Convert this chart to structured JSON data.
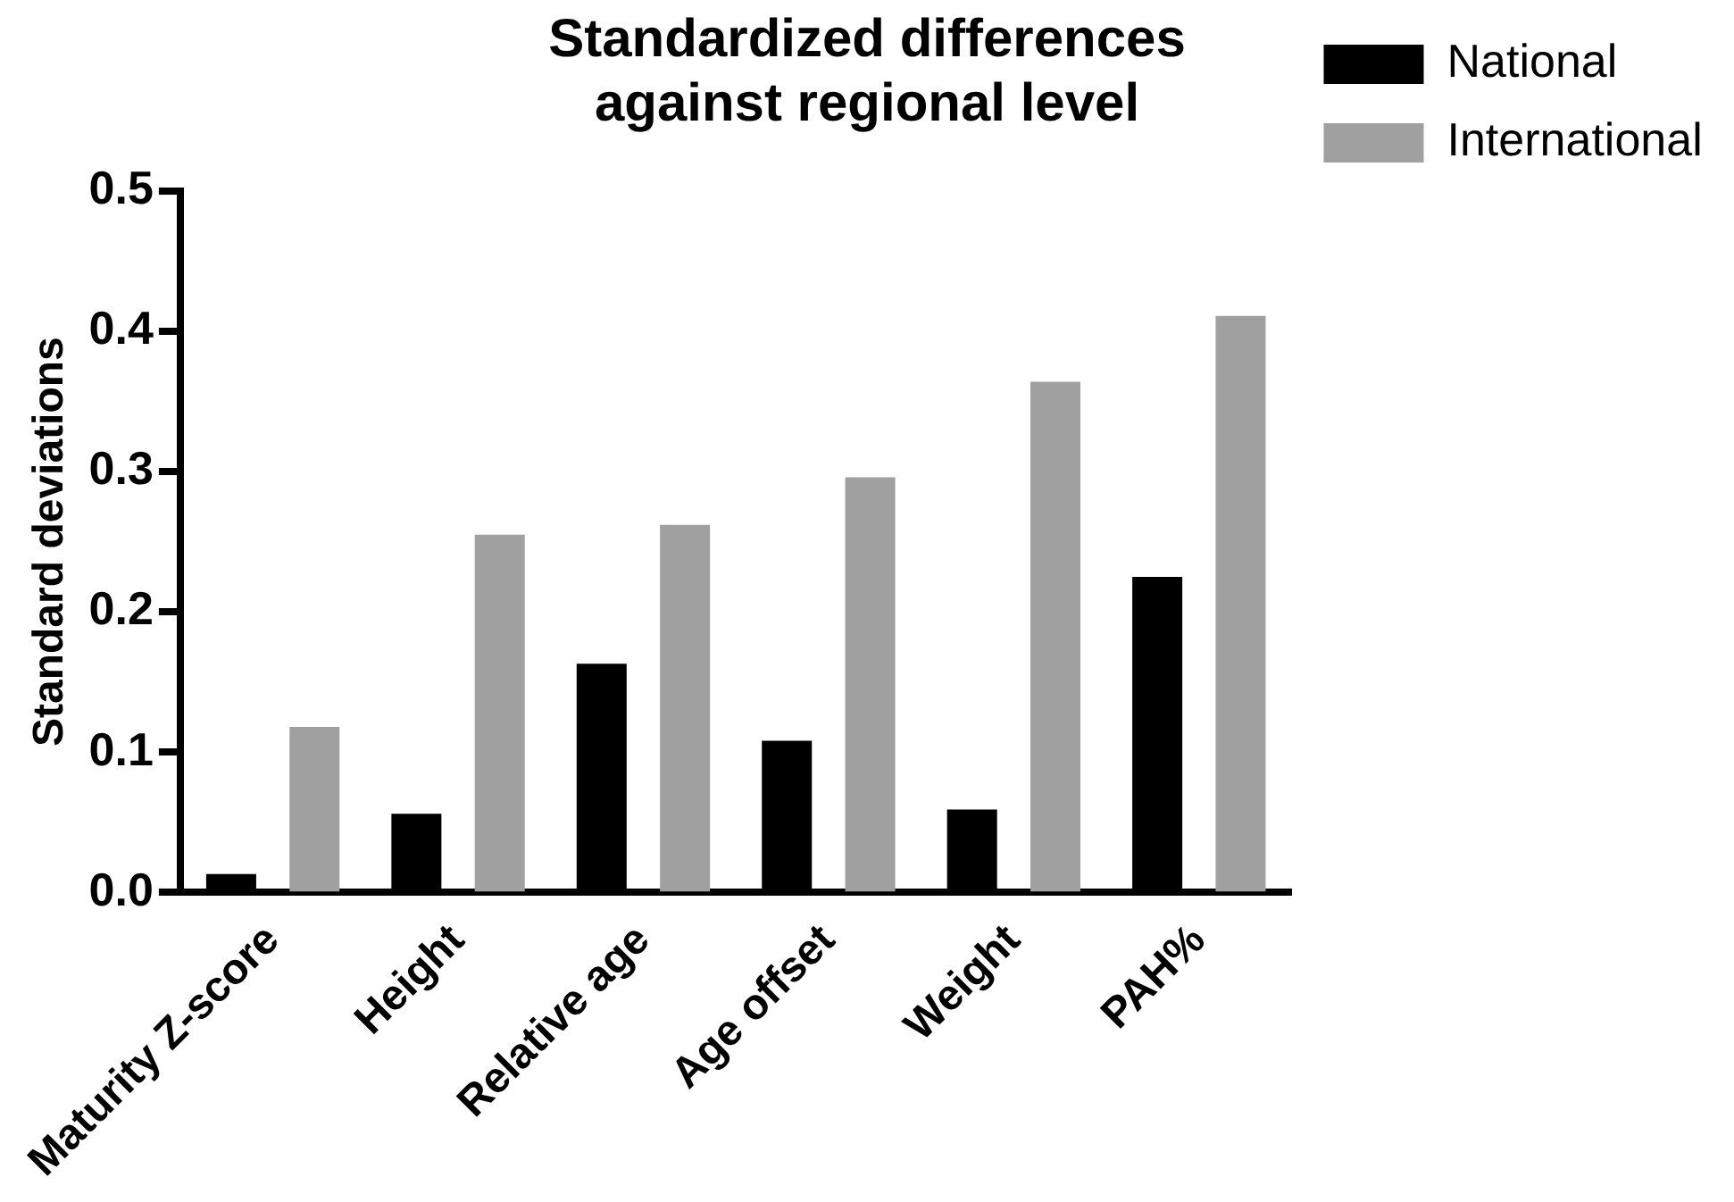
{
  "chart_data": {
    "type": "bar",
    "title": "Standardized differences\nagainst regional level",
    "ylabel": "Standard deviations",
    "categories": [
      "Maturity Z-score",
      "Height",
      "Relative age",
      "Age offset",
      "Weight",
      "PAH%"
    ],
    "series": [
      {
        "name": "National",
        "color": "#000000",
        "values": [
          0.013,
          0.056,
          0.163,
          0.108,
          0.059,
          0.225
        ]
      },
      {
        "name": "International",
        "color": "#a0a0a0",
        "values": [
          0.118,
          0.255,
          0.262,
          0.296,
          0.364,
          0.411
        ]
      }
    ],
    "ylim": [
      0,
      0.5
    ],
    "yticks": [
      {
        "value": 0,
        "label": "0.0"
      },
      {
        "value": 0.1,
        "label": "0.1"
      },
      {
        "value": 0.2,
        "label": "0.2"
      },
      {
        "value": 0.3,
        "label": "0.3"
      },
      {
        "value": 0.4,
        "label": "0.4"
      },
      {
        "value": 0.5,
        "label": "0.5"
      }
    ],
    "grid": false,
    "legend": "top right"
  }
}
